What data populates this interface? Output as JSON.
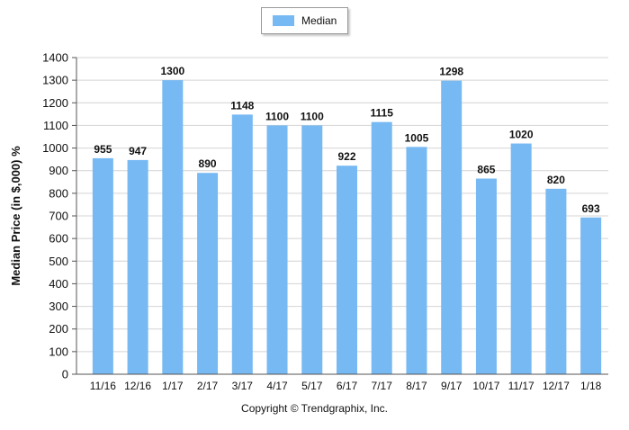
{
  "chart_data": {
    "type": "bar",
    "title": "",
    "xlabel": "",
    "ylabel": "Median Price (in $,000) %",
    "ylim": [
      0,
      1400
    ],
    "yticks": [
      0,
      100,
      200,
      300,
      400,
      500,
      600,
      700,
      800,
      900,
      1000,
      1100,
      1200,
      1300,
      1400
    ],
    "grid": true,
    "legend_position": "top-center",
    "categories": [
      "11/16",
      "12/16",
      "1/17",
      "2/17",
      "3/17",
      "4/17",
      "5/17",
      "6/17",
      "7/17",
      "8/17",
      "9/17",
      "10/17",
      "11/17",
      "12/17",
      "1/18"
    ],
    "series": [
      {
        "name": "Median",
        "color": "#76b9f3",
        "values": [
          955,
          947,
          1300,
          890,
          1148,
          1100,
          1100,
          922,
          1115,
          1005,
          1298,
          865,
          1020,
          820,
          693
        ]
      }
    ]
  },
  "footer": {
    "copyright": "Copyright © Trendgraphix, Inc."
  }
}
